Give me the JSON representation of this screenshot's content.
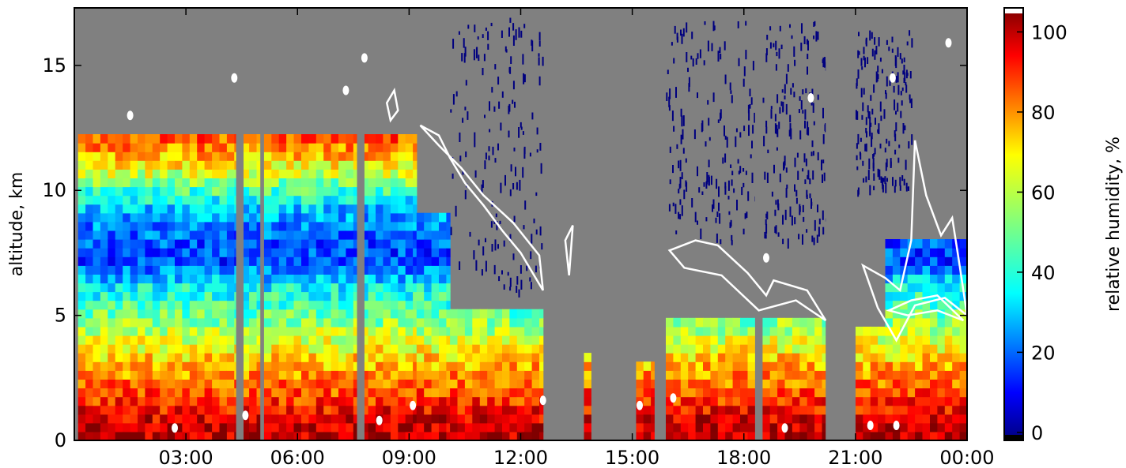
{
  "chart_data": [
    {
      "type": "heatmap",
      "title": "",
      "xlabel": "",
      "ylabel": "altitude, km",
      "x_ticks": [
        "03:00",
        "06:00",
        "09:00",
        "12:00",
        "15:00",
        "18:00",
        "21:00",
        "00:00"
      ],
      "x_tick_hours": [
        3,
        6,
        9,
        12,
        15,
        18,
        21,
        24
      ],
      "xlim_hours": [
        0,
        24
      ],
      "y_ticks": [
        "0",
        "5",
        "10",
        "15"
      ],
      "y_tick_values": [
        0,
        5,
        10,
        15
      ],
      "ylim": [
        0,
        17.3
      ],
      "grid": false,
      "background_color": "#808080",
      "contour_color": "#ffffff",
      "profile_top_km": [
        {
          "start_h": 0.1,
          "end_h": 4.3,
          "top_km": 12
        },
        {
          "start_h": 4.3,
          "end_h": 9.2,
          "top_km": 12
        },
        {
          "start_h": 9.2,
          "end_h": 10.1,
          "top_km": 9
        },
        {
          "start_h": 10.1,
          "end_h": 12.6,
          "top_km": 5
        },
        {
          "start_h": 13.7,
          "end_h": 13.9,
          "top_km": 3.2
        },
        {
          "start_h": 15.1,
          "end_h": 15.6,
          "top_km": 3
        },
        {
          "start_h": 15.9,
          "end_h": 18.3,
          "top_km": 4.8
        },
        {
          "start_h": 18.5,
          "end_h": 20.2,
          "top_km": 4.6
        },
        {
          "start_h": 21.0,
          "end_h": 21.8,
          "top_km": 4.5
        },
        {
          "start_h": 21.8,
          "end_h": 24.0,
          "top_km": 8
        }
      ],
      "data_gaps_h": [
        [
          4.35,
          4.55
        ],
        [
          5.0,
          5.1
        ],
        [
          7.6,
          7.8
        ],
        [
          12.7,
          13.7
        ],
        [
          13.9,
          15.1
        ],
        [
          15.6,
          15.9
        ],
        [
          18.3,
          18.5
        ],
        [
          20.2,
          21.0
        ]
      ],
      "rh_profile_pct_by_altitude_km": [
        {
          "altitude_km": 0.3,
          "rh_pct": 100
        },
        {
          "altitude_km": 1.0,
          "rh_pct": 92
        },
        {
          "altitude_km": 2.0,
          "rh_pct": 82
        },
        {
          "altitude_km": 3.0,
          "rh_pct": 72
        },
        {
          "altitude_km": 4.0,
          "rh_pct": 60
        },
        {
          "altitude_km": 5.0,
          "rh_pct": 48
        },
        {
          "altitude_km": 6.0,
          "rh_pct": 38
        },
        {
          "altitude_km": 7.0,
          "rh_pct": 18
        },
        {
          "altitude_km": 8.0,
          "rh_pct": 22
        },
        {
          "altitude_km": 9.0,
          "rh_pct": 30
        },
        {
          "altitude_km": 10.0,
          "rh_pct": 50
        },
        {
          "altitude_km": 11.0,
          "rh_pct": 70
        },
        {
          "altitude_km": 12.0,
          "rh_pct": 85
        }
      ],
      "colorbar": {
        "label": "relative humidity, %",
        "ticks": [
          "0",
          "20",
          "40",
          "60",
          "80",
          "100"
        ],
        "tick_values": [
          0,
          20,
          40,
          60,
          80,
          100
        ],
        "range": [
          -2,
          106
        ],
        "colormap": "jet"
      }
    }
  ]
}
